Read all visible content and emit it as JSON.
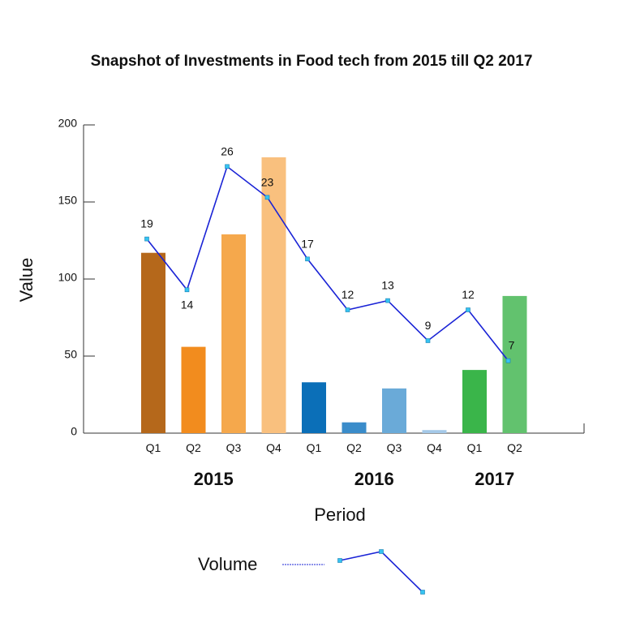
{
  "chart_data": {
    "type": "bar",
    "title": "Snapshot of Investments in Food tech from 2015 till Q2 2017",
    "xlabel": "Period",
    "ylabel": "Value",
    "ylim": [
      0,
      200
    ],
    "yticks": [
      0,
      50,
      100,
      150,
      200
    ],
    "years": [
      {
        "label": "2015",
        "quarters": [
          "Q1",
          "Q2",
          "Q3",
          "Q4"
        ]
      },
      {
        "label": "2016",
        "quarters": [
          "Q1",
          "Q2",
          "Q3",
          "Q4"
        ]
      },
      {
        "label": "2017",
        "quarters": [
          "Q1",
          "Q2"
        ]
      }
    ],
    "categories": [
      "Q1",
      "Q2",
      "Q3",
      "Q4",
      "Q1",
      "Q2",
      "Q3",
      "Q4",
      "Q1",
      "Q2"
    ],
    "bars": {
      "name": "Investment value",
      "values": [
        117,
        56,
        129,
        179,
        33,
        7,
        29,
        2,
        41,
        89
      ],
      "colors": [
        "#b5681b",
        "#f28c1e",
        "#f5a84c",
        "#f9c07e",
        "#0b6fb8",
        "#3a8cca",
        "#6aaad8",
        "#a4c9e8",
        "#3ab54a",
        "#62c26e"
      ]
    },
    "line": {
      "name": "Volume",
      "color": "#1a23d6",
      "marker_color": "#35c3f2",
      "labels": [
        "19",
        "14",
        "26",
        "23",
        "17",
        "12",
        "13",
        "9",
        "12",
        "7"
      ],
      "values": [
        126,
        93,
        173,
        153,
        113,
        80,
        86,
        60,
        80,
        47
      ]
    },
    "legend": {
      "entries": [
        "Volume"
      ],
      "position": "bottom"
    }
  }
}
